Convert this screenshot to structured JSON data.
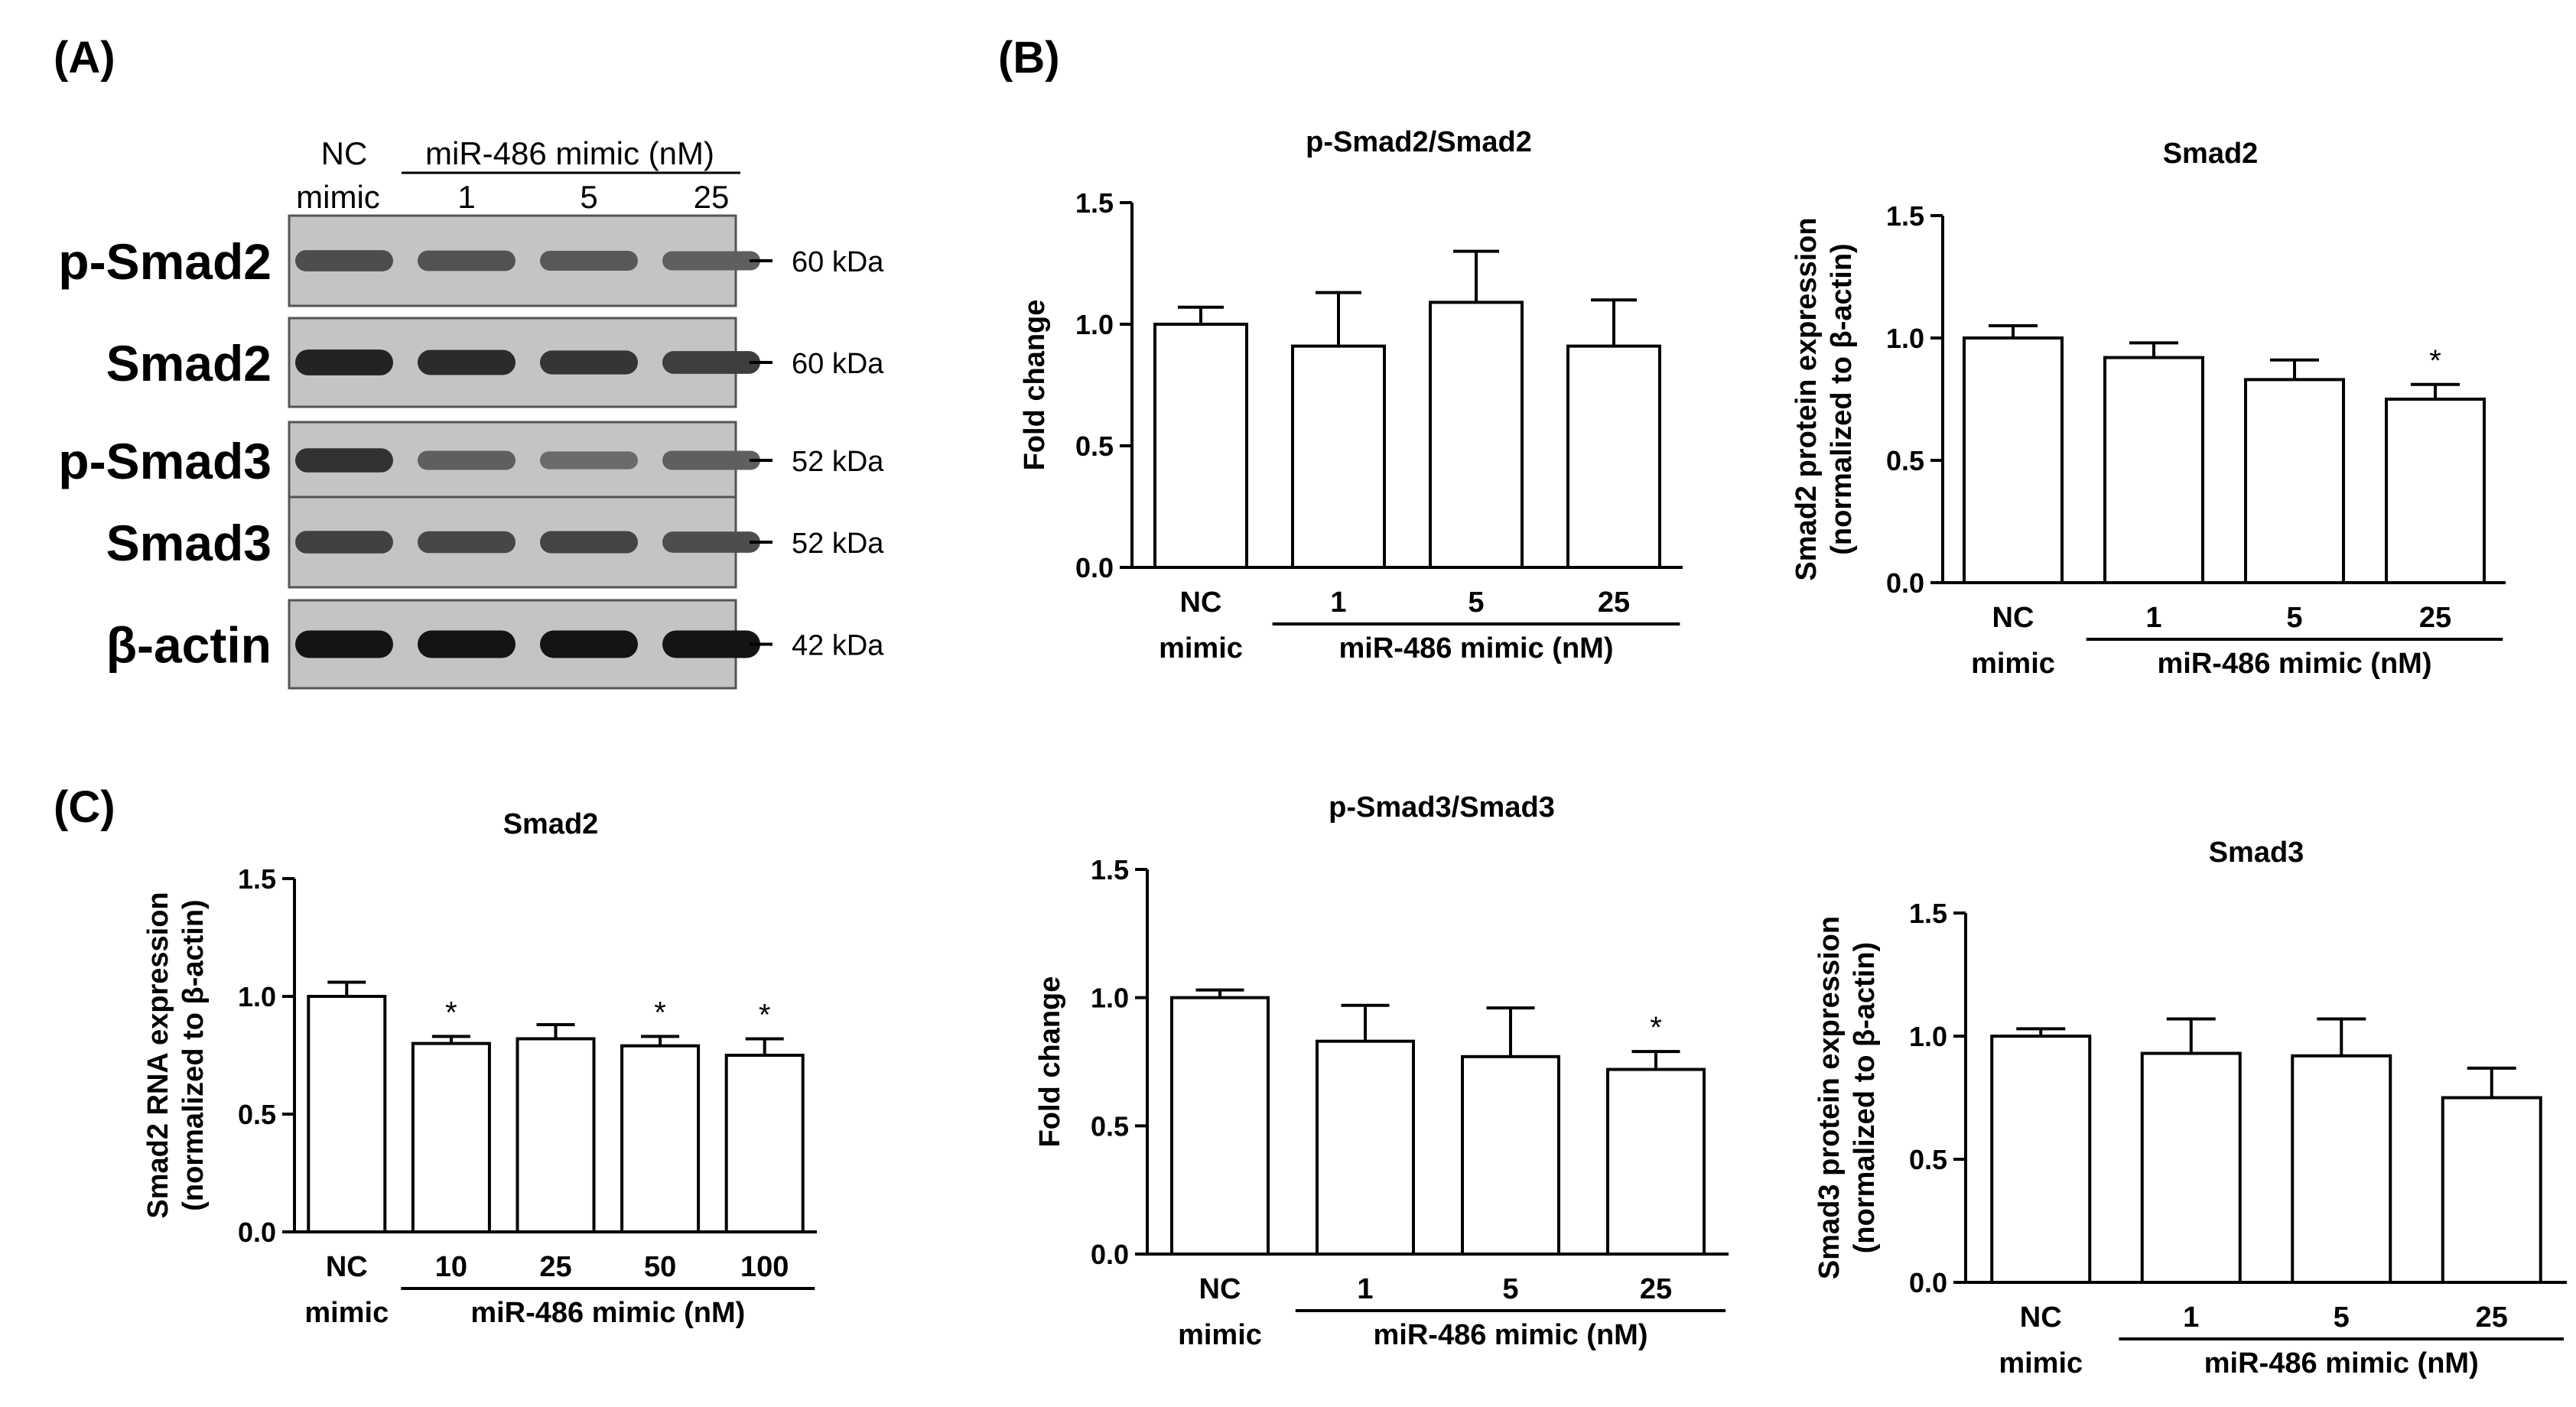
{
  "panels": {
    "a": "(A)",
    "b": "(B)",
    "c": "(C)"
  },
  "blot": {
    "header_nc": [
      "NC",
      "mimic"
    ],
    "header_group": "miR-486 mimic (nM)",
    "doses": [
      "1",
      "5",
      "25"
    ],
    "rows": [
      {
        "label": "p-Smad2",
        "kda": "60 kDa",
        "intensity": [
          0.62,
          0.58,
          0.55,
          0.5
        ]
      },
      {
        "label": "Smad2",
        "kda": "60 kDa",
        "intensity": [
          0.9,
          0.85,
          0.78,
          0.72
        ]
      },
      {
        "label": "p-Smad3",
        "kda": "52 kDa",
        "intensity": [
          0.8,
          0.5,
          0.42,
          0.5
        ]
      },
      {
        "label": "Smad3",
        "kda": "52 kDa",
        "intensity": [
          0.7,
          0.66,
          0.68,
          0.62
        ]
      },
      {
        "label": "β-actin",
        "kda": "42 kDa",
        "intensity": [
          1.0,
          1.0,
          1.0,
          1.0
        ]
      }
    ]
  },
  "chart_data": [
    {
      "id": "b1",
      "type": "bar",
      "title": "p-Smad2/Smad2",
      "ylabel": [
        "Fold change"
      ],
      "ylim": [
        0,
        1.5
      ],
      "yticks": [
        "0.0",
        "0.5",
        "1.0",
        "1.5"
      ],
      "categories": [
        "NC",
        "1",
        "5",
        "25"
      ],
      "sublabel": "mimic",
      "group_label": "miR-486 mimic (nM)",
      "values": [
        1.0,
        0.91,
        1.09,
        0.91
      ],
      "errors": [
        0.07,
        0.22,
        0.21,
        0.19
      ],
      "stars": [
        "",
        "",
        "",
        ""
      ]
    },
    {
      "id": "b2",
      "type": "bar",
      "title": "Smad2",
      "ylabel": [
        "Smad2  protein expression",
        "(normalized to β-actin)"
      ],
      "ylim": [
        0,
        1.5
      ],
      "yticks": [
        "0.0",
        "0.5",
        "1.0",
        "1.5"
      ],
      "categories": [
        "NC",
        "1",
        "5",
        "25"
      ],
      "sublabel": "mimic",
      "group_label": "miR-486 mimic (nM)",
      "values": [
        1.0,
        0.92,
        0.83,
        0.75
      ],
      "errors": [
        0.05,
        0.06,
        0.08,
        0.06
      ],
      "stars": [
        "",
        "",
        "",
        "*"
      ]
    },
    {
      "id": "c1",
      "type": "bar",
      "title": "Smad2",
      "ylabel": [
        "Smad2 RNA expression",
        "(normalized to β-actin)"
      ],
      "ylim": [
        0,
        1.5
      ],
      "yticks": [
        "0.0",
        "0.5",
        "1.0",
        "1.5"
      ],
      "categories": [
        "NC",
        "10",
        "25",
        "50",
        "100"
      ],
      "sublabel": "mimic",
      "group_label": "miR-486 mimic (nM)",
      "values": [
        1.0,
        0.8,
        0.82,
        0.79,
        0.75
      ],
      "errors": [
        0.06,
        0.03,
        0.06,
        0.04,
        0.07
      ],
      "stars": [
        "",
        "*",
        "",
        "*",
        "*"
      ]
    },
    {
      "id": "c2",
      "type": "bar",
      "title": "p-Smad3/Smad3",
      "ylabel": [
        "Fold change"
      ],
      "ylim": [
        0,
        1.5
      ],
      "yticks": [
        "0.0",
        "0.5",
        "1.0",
        "1.5"
      ],
      "categories": [
        "NC",
        "1",
        "5",
        "25"
      ],
      "sublabel": "mimic",
      "group_label": "miR-486 mimic (nM)",
      "values": [
        1.0,
        0.83,
        0.77,
        0.72
      ],
      "errors": [
        0.03,
        0.14,
        0.19,
        0.07
      ],
      "stars": [
        "",
        "",
        "",
        "*"
      ]
    },
    {
      "id": "c3",
      "type": "bar",
      "title": "Smad3",
      "ylabel": [
        "Smad3  protein expression",
        "(normalized to β-actin)"
      ],
      "ylim": [
        0,
        1.5
      ],
      "yticks": [
        "0.0",
        "0.5",
        "1.0",
        "1.5"
      ],
      "categories": [
        "NC",
        "1",
        "5",
        "25"
      ],
      "sublabel": "mimic",
      "group_label": "miR-486 mimic (nM)",
      "values": [
        1.0,
        0.93,
        0.92,
        0.75
      ],
      "errors": [
        0.03,
        0.14,
        0.15,
        0.12
      ],
      "stars": [
        "",
        "",
        "",
        ""
      ]
    }
  ]
}
